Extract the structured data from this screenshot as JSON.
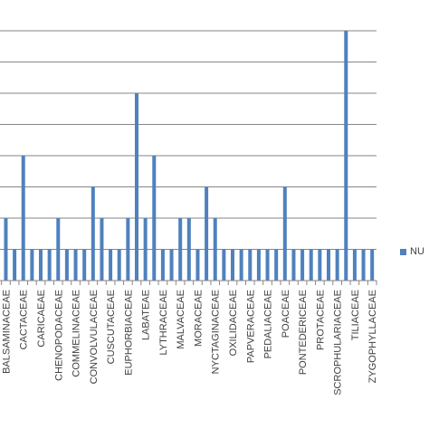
{
  "colors": {
    "bar": "#4f81bd",
    "grid": "#868686",
    "text": "#404040",
    "background": "#ffffff"
  },
  "chart_data": {
    "type": "bar",
    "title": "",
    "xlabel": "",
    "ylabel": "",
    "grid": true,
    "ylim": [
      0,
      9
    ],
    "yticks": [
      0,
      1,
      2,
      3,
      4,
      5,
      6,
      7,
      8,
      9
    ],
    "legend": {
      "position": "right",
      "label": "NU"
    },
    "categories": [
      "",
      "BALSAMINACEAE",
      "",
      "CACTACEAE",
      "",
      "CARICAEAE",
      "",
      "CHENOPODACEAE",
      "",
      "COMMELINACEAE",
      "",
      "CONVOLVULACEAE",
      "",
      "CUSCUTACEAE",
      "",
      "EUPHORBIACEAE",
      "",
      "LABATEAE",
      "",
      "LYTHRACEAE",
      "",
      "MALVACEAE",
      "",
      "MORACEAE",
      "",
      "NYCTAGINACEAE",
      "",
      "OXILIDACEAE",
      "",
      "PAPVERACEAE",
      "",
      "PEDALIACEAE",
      "",
      "POACEAE",
      "",
      "PONTEDERICEAE",
      "",
      "PROTACEAE",
      "",
      "SCROPHULARIACEAE",
      "",
      "TILIACEAE",
      "",
      "ZYGOPHYLLACEAE"
    ],
    "series": [
      {
        "name": "NU",
        "values": [
          1,
          2,
          1,
          4,
          1,
          1,
          1,
          2,
          1,
          1,
          1,
          3,
          2,
          1,
          1,
          2,
          6,
          2,
          4,
          1,
          1,
          2,
          2,
          1,
          3,
          2,
          1,
          1,
          1,
          1,
          1,
          1,
          1,
          3,
          1,
          1,
          1,
          1,
          1,
          1,
          8,
          1,
          1,
          1
        ]
      }
    ]
  }
}
